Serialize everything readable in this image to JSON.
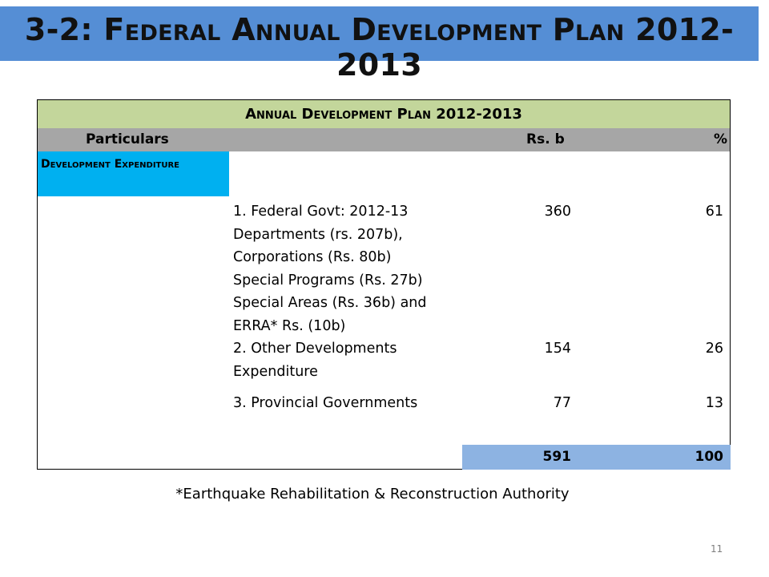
{
  "slide": {
    "title": "3-2: Federal Annual Development Plan 2012-2013",
    "footnote": "*Earthquake Rehabilitation & Reconstruction Authority",
    "page_number": "11"
  },
  "table": {
    "header": "Annual Development Plan 2012-2013",
    "columns": {
      "particulars": "Particulars",
      "amount": "Rs. b",
      "percent": "%"
    },
    "section_label": "Development Expenditure",
    "rows": [
      {
        "lines": [
          "1. Federal Govt: 2012-13",
          "Departments (rs. 207b),",
          "Corporations (Rs. 80b)",
          "Special Programs (Rs. 27b)",
          "Special Areas (Rs. 36b) and",
          "ERRA* Rs. (10b)"
        ],
        "amount": "360",
        "percent": "61"
      },
      {
        "lines": [
          "2. Other Developments",
          "Expenditure"
        ],
        "amount": "154",
        "percent": "26"
      },
      {
        "lines": [
          "3. Provincial Governments"
        ],
        "amount": "77",
        "percent": "13"
      }
    ],
    "total": {
      "amount": "591",
      "percent": "100"
    }
  },
  "colors": {
    "title_bar": "#558ed5",
    "table_header": "#c3d69b",
    "column_header": "#a6a6a6",
    "section_label": "#00b0f0",
    "total_row": "#8db3e2"
  }
}
